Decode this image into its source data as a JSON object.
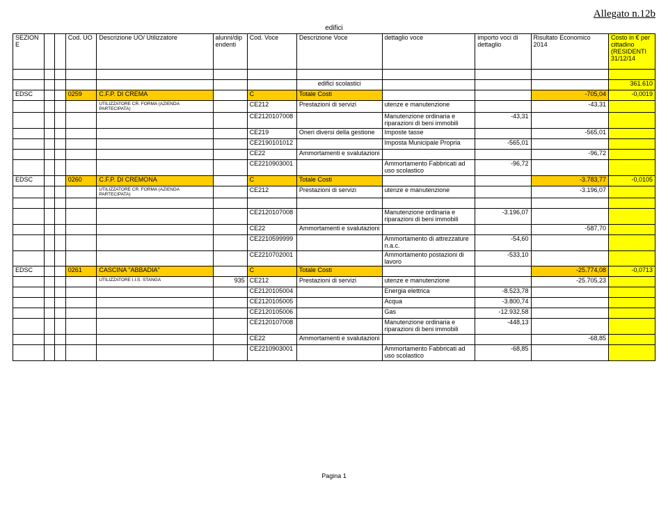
{
  "header": {
    "allegato": "Allegato n.12b",
    "title": "edifici",
    "columns": {
      "sezione": "SEZIONE",
      "coduo": "Cod. UO",
      "descuo": "Descrizione UO/\nUtilizzatore",
      "alunni": "alunni/dipendenti",
      "codvoce": "Cod. Voce",
      "descvoce": "Descrizione Voce",
      "dettaglio": "dettaglio voce",
      "importo": "importo voci di dettaglio",
      "risultato": "Risultato Economico 2014",
      "costo": "Costo in € per cittadino (RESIDENTI 31/12/14"
    }
  },
  "section_row": {
    "label": "edifici scolastici",
    "val": "361.610"
  },
  "rows": [
    {
      "c0": "EDSC",
      "c3": "0259",
      "c4": "C.F.P. DI CREMA",
      "c6": "C",
      "c7": "Totale Costi",
      "c10": "-705,04",
      "c11": "-0,0019",
      "orange": true
    },
    {
      "c4": "UTILIZZATORE CR. FORMA (AZIENDA PARTECIPATA)",
      "c4small": true,
      "c6": "CE212",
      "c7": "Prestazioni di servizi",
      "c8": "utenze e manutenzione",
      "c10": "-43,31"
    },
    {
      "c6": "CE2120107008",
      "c8": "Manutenzione ordinaria e riparazioni di beni immobili",
      "c9": "-43,31"
    },
    {
      "c6": "CE219",
      "c7": "Oneri diversi della gestione",
      "c8": "Imposte tasse",
      "c10": "-565,01"
    },
    {
      "c6": "CE2190101012",
      "c8": "Imposta Municipale Propria",
      "c9": "-565,01"
    },
    {
      "c6": "CE22",
      "c7": "Ammortamenti e svalutazioni",
      "c10": "-96,72"
    },
    {
      "c6": "CE2210903001",
      "c8": "Ammortamento Fabbricati ad uso scolastico",
      "c9": "-96,72"
    },
    {
      "c0": "EDSC",
      "c3": "0260",
      "c4": "C.F.P. DI CREMONA",
      "c6": "C",
      "c7": "Totale Costi",
      "c10": "-3.783,77",
      "c11": "-0,0105",
      "orange": true
    },
    {
      "c4": "UTILIZZATORE CR. FORMA (AZIENDA PARTECIPATA)",
      "c4small": true,
      "c6": "CE212",
      "c7": "Prestazioni di servizi",
      "c8": "utenze e manutenzione",
      "c10": "-3.196,07"
    },
    {
      "blank": true
    },
    {
      "c6": "CE2120107008",
      "c8": "Manutenzione ordinaria e riparazioni di beni immobili",
      "c9": "-3.196,07"
    },
    {
      "c6": "CE22",
      "c7": "Ammortamenti e svalutazioni",
      "c10": "-587,70"
    },
    {
      "c6": "CE2210599999",
      "c8": "Ammortamento di attrezzature n.a.c.",
      "c9": "-54,60"
    },
    {
      "c6": "CE2210702001",
      "c8": "Ammortamento postazioni di lavoro",
      "c9": "-533,10"
    },
    {
      "c0": "EDSC",
      "c3": "0261",
      "c4": "CASCINA \"ABBADIA\"",
      "c6": "C",
      "c7": "Totale Costi",
      "c10": "-25.774,08",
      "c11": "-0,0713",
      "orange": true
    },
    {
      "c4": "UTILIZZATORE I.I.S. STANGA",
      "c4small": true,
      "c5": "935",
      "c6": "CE212",
      "c7": "Prestazioni di servizi",
      "c8": "utenze e manutenzione",
      "c10": "-25.705,23"
    },
    {
      "c6": "CE2120105004",
      "c8": "Energia elettrica",
      "c9": "-8.523,78"
    },
    {
      "c6": "CE2120105005",
      "c8": "Acqua",
      "c9": "-3.800,74"
    },
    {
      "c6": "CE2120105006",
      "c8": "Gas",
      "c9": "-12.932,58"
    },
    {
      "c6": "CE2120107008",
      "c8": "Manutenzione ordinaria e riparazioni di beni immobili",
      "c9": "-448,13"
    },
    {
      "c6": "CE22",
      "c7": "Ammortamenti e svalutazioni",
      "c10": "-68,85"
    },
    {
      "c6": "CE2210903001",
      "c8": "Ammortamento Fabbricati ad uso scolastico",
      "c9": "-68,85"
    }
  ],
  "footer": "Pagina 1"
}
